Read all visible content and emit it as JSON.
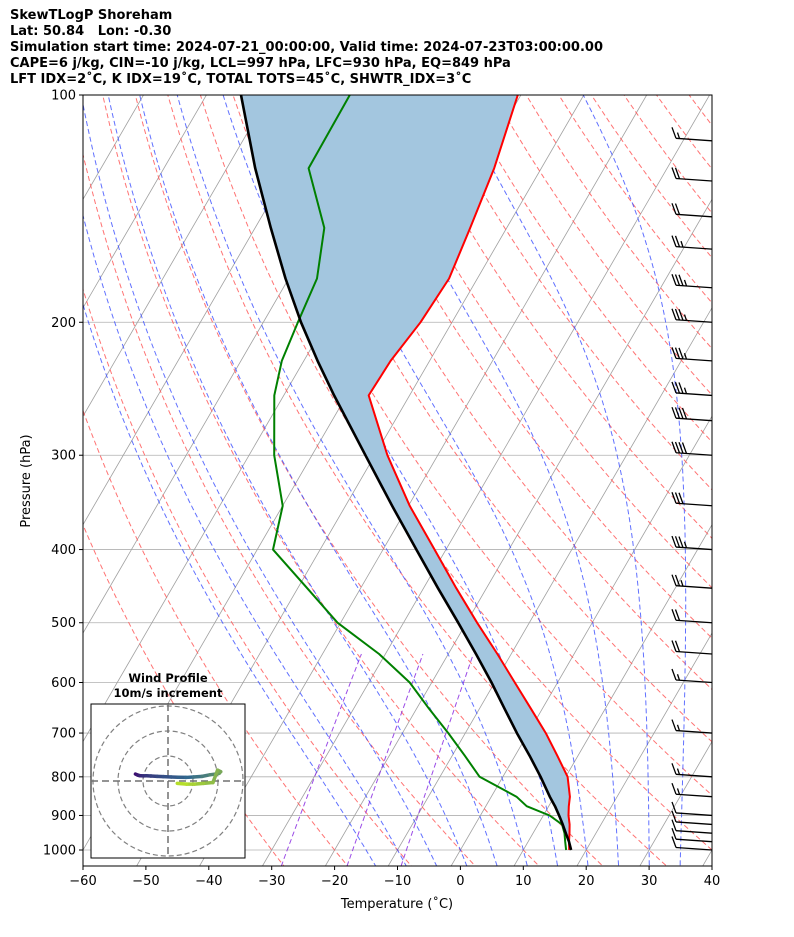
{
  "header": {
    "line1": "SkewTLogP Shoreham",
    "line2": "Lat: 50.84   Lon: -0.30",
    "line3": "Simulation start time: 2024-07-21_00:00:00, Valid time: 2024-07-23T03:00:00.00",
    "line4": "CAPE=6 j/kg, CIN=-10 j/kg, LCL=997 hPa, LFC=930 hPa, EQ=849 hPa",
    "line5": "LFT IDX=2˚C, K IDX=19˚C, TOTAL TOTS=45˚C, SHWTR_IDX=3˚C"
  },
  "colors": {
    "temperature": "#ff0000",
    "dewpoint": "#008000",
    "parcel": "#000000",
    "cape_fill": "#a3c6df",
    "dry_adiabat": "#ff5a5a",
    "moist_adiabat": "#3a4dff",
    "mixing_ratio": "#8a2be2",
    "isotherm": "#a0a0a0",
    "isobar": "#b0b0b0",
    "hodograph_start": "#3b0f70",
    "hodograph_end": "#b5de2b"
  },
  "chart_data": [
    {
      "type": "line",
      "subtype": "skew-t log-p",
      "title": "",
      "xlabel": "Temperature (˚C)",
      "ylabel": "Pressure (hPa)",
      "xlim": [
        -60,
        40
      ],
      "ylim": [
        1050,
        100
      ],
      "y_scale": "log",
      "x_ticks": [
        -60,
        -50,
        -40,
        -30,
        -20,
        -10,
        0,
        10,
        20,
        30,
        40
      ],
      "x_tick_labels": [
        "−60",
        "−50",
        "−40",
        "−30",
        "−20",
        "−10",
        "0",
        "10",
        "20",
        "30",
        "40"
      ],
      "y_ticks": [
        1000,
        900,
        800,
        700,
        600,
        500,
        400,
        300,
        200,
        100
      ],
      "y_tick_labels": [
        "1000",
        "900",
        "800",
        "700",
        "600",
        "500",
        "400",
        "300",
        "200",
        "100"
      ],
      "grid": true,
      "pressure_levels": [
        1000,
        975,
        950,
        925,
        900,
        875,
        850,
        800,
        750,
        700,
        650,
        600,
        550,
        500,
        450,
        400,
        350,
        300,
        250,
        225,
        200,
        175,
        150,
        125,
        100
      ],
      "series": [
        {
          "role": "temperature",
          "values": [
            17.3,
            16.5,
            15.8,
            15.0,
            14.0,
            13.2,
            12.5,
            10.3,
            6.7,
            2.8,
            -1.8,
            -6.8,
            -12.2,
            -18.3,
            -24.8,
            -31.8,
            -39.8,
            -48.0,
            -56.5,
            -56.2,
            -55.0,
            -54.5,
            -55.8,
            -57.5,
            -60.5
          ]
        },
        {
          "role": "dewpoint",
          "values": [
            16.8,
            15.9,
            15.0,
            13.8,
            11.0,
            6.5,
            4.0,
            -3.7,
            -8.0,
            -12.7,
            -18.0,
            -23.5,
            -31.0,
            -40.5,
            -48.5,
            -57.5,
            -60.0,
            -66.0,
            -71.5,
            -73.5,
            -74.5,
            -75.5,
            -79.0,
            -87.0,
            -87.2
          ]
        },
        {
          "role": "parcel",
          "values": [
            17.6,
            16.5,
            15.2,
            13.9,
            12.5,
            11.0,
            9.3,
            6.0,
            2.3,
            -1.8,
            -6.0,
            -10.5,
            -15.6,
            -21.3,
            -27.7,
            -34.7,
            -42.6,
            -51.5,
            -62.0,
            -67.8,
            -74.0,
            -80.5,
            -87.5,
            -95.5,
            -104.5
          ]
        }
      ],
      "wind_barbs": [
        {
          "p": 1000,
          "wspd_kt": 10
        },
        {
          "p": 975,
          "wspd_kt": 10
        },
        {
          "p": 950,
          "wspd_kt": 10
        },
        {
          "p": 925,
          "wspd_kt": 10
        },
        {
          "p": 900,
          "wspd_kt": 10
        },
        {
          "p": 850,
          "wspd_kt": 15
        },
        {
          "p": 800,
          "wspd_kt": 15
        },
        {
          "p": 700,
          "wspd_kt": 15
        },
        {
          "p": 600,
          "wspd_kt": 15
        },
        {
          "p": 550,
          "wspd_kt": 20
        },
        {
          "p": 500,
          "wspd_kt": 20
        },
        {
          "p": 450,
          "wspd_kt": 25
        },
        {
          "p": 400,
          "wspd_kt": 35
        },
        {
          "p": 350,
          "wspd_kt": 30
        },
        {
          "p": 300,
          "wspd_kt": 40
        },
        {
          "p": 270,
          "wspd_kt": 40
        },
        {
          "p": 250,
          "wspd_kt": 35
        },
        {
          "p": 225,
          "wspd_kt": 35
        },
        {
          "p": 200,
          "wspd_kt": 35
        },
        {
          "p": 180,
          "wspd_kt": 35
        },
        {
          "p": 160,
          "wspd_kt": 25
        },
        {
          "p": 145,
          "wspd_kt": 20
        },
        {
          "p": 130,
          "wspd_kt": 20
        },
        {
          "p": 115,
          "wspd_kt": 15
        }
      ]
    },
    {
      "type": "line",
      "subtype": "hodograph",
      "title": "Wind Profile",
      "subtitle": "10m/s increment",
      "ring_count": 3,
      "u_kt": [
        -21.0,
        -19.5,
        -18.5,
        -17.5,
        -16.0,
        -14.0,
        -11.0,
        -7.0,
        -3.0,
        2.0,
        6.5,
        11.5,
        16.5,
        22.0,
        27.0,
        31.0,
        33.0,
        34.0,
        32.0,
        29.0,
        23.0,
        17.0,
        12.0,
        6.0
      ],
      "v_kt": [
        4.5,
        3.8,
        3.5,
        3.4,
        3.3,
        3.4,
        3.2,
        3.0,
        2.8,
        2.6,
        2.4,
        2.3,
        2.6,
        3.0,
        4.0,
        4.5,
        5.0,
        6.0,
        7.0,
        -1.0,
        -1.5,
        -2.0,
        -2.0,
        -1.5
      ]
    }
  ]
}
